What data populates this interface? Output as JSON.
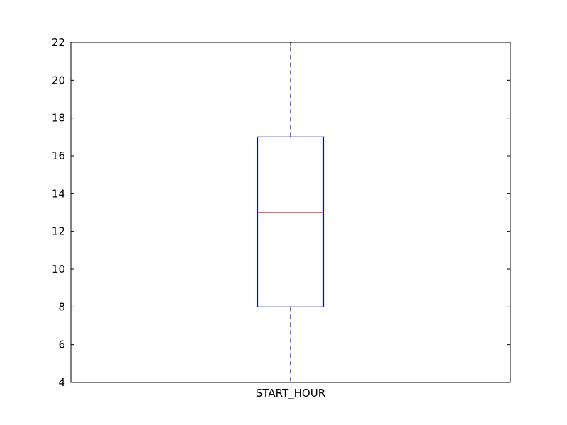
{
  "chart_data": {
    "type": "box",
    "title": "",
    "xlabel": "",
    "ylabel": "",
    "categories": [
      "START_HOUR"
    ],
    "series": [
      {
        "whisker_low": 4,
        "q1": 8,
        "median": 13,
        "q3": 17,
        "whisker_high": 22
      }
    ],
    "ylim": [
      4,
      22
    ],
    "yticks": [
      4,
      6,
      8,
      10,
      12,
      14,
      16,
      18,
      20,
      22
    ],
    "grid": false,
    "legend": "none",
    "colors": {
      "box": "#0000ff",
      "median": "#ff0000",
      "whisker": "#0000ff",
      "axes": "#000000"
    }
  }
}
